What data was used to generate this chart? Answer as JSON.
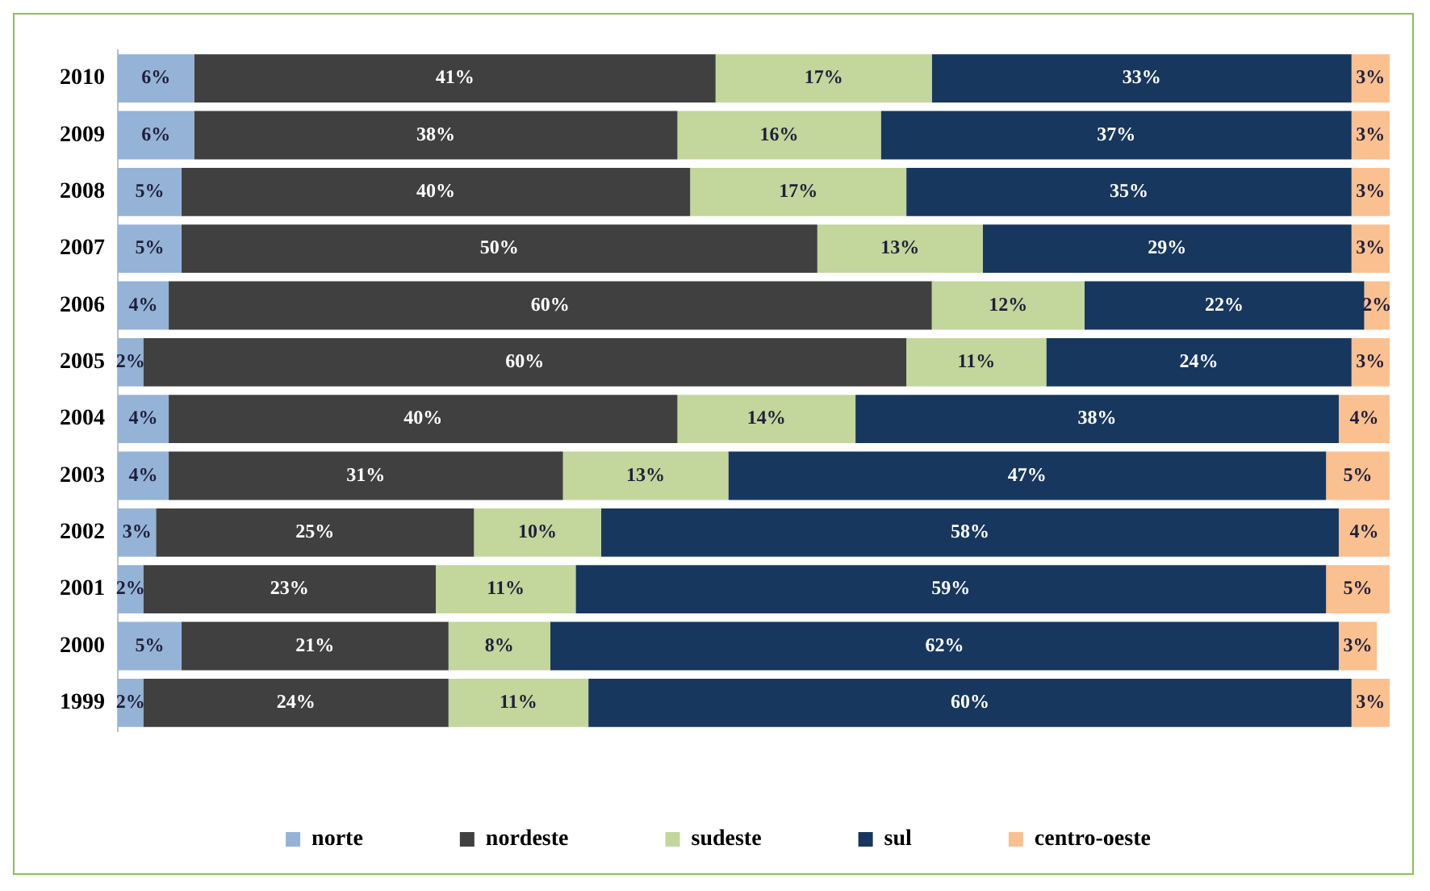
{
  "chart_data": {
    "type": "bar",
    "orientation": "horizontal",
    "stacked": true,
    "legend": "bottom",
    "grid": false,
    "categories": [
      "2010",
      "2009",
      "2008",
      "2007",
      "2006",
      "2005",
      "2004",
      "2003",
      "2002",
      "2001",
      "2000",
      "1999"
    ],
    "series": [
      {
        "name": "norte",
        "color": "#95b3d7",
        "values": [
          6,
          6,
          5,
          5,
          4,
          2,
          4,
          4,
          3,
          2,
          5,
          2
        ],
        "value_labels": [
          "6%",
          "6%",
          "5%",
          "5%",
          "4%",
          "2%",
          "4%",
          "4%",
          "3%",
          "2%",
          "5%",
          "2%"
        ]
      },
      {
        "name": "nordeste",
        "color": "#404040",
        "values": [
          41,
          38,
          40,
          50,
          60,
          60,
          40,
          31,
          25,
          23,
          21,
          24
        ],
        "value_labels": [
          "41%",
          "38%",
          "40%",
          "50%",
          "60%",
          "60%",
          "40%",
          "31%",
          "25%",
          "23%",
          "21%",
          "24%"
        ]
      },
      {
        "name": "sudeste",
        "color": "#c3d69b",
        "values": [
          17,
          16,
          17,
          13,
          12,
          11,
          14,
          13,
          10,
          11,
          8,
          11
        ],
        "value_labels": [
          "17%",
          "16%",
          "17%",
          "13%",
          "12%",
          "11%",
          "14%",
          "13%",
          "10%",
          "11%",
          "8%",
          "11%"
        ]
      },
      {
        "name": "sul",
        "color": "#17375e",
        "values": [
          33,
          37,
          35,
          29,
          22,
          24,
          38,
          47,
          58,
          59,
          62,
          60
        ],
        "value_labels": [
          "33%",
          "37%",
          "35%",
          "29%",
          "22%",
          "24%",
          "38%",
          "47%",
          "58%",
          "59%",
          "62%",
          "60%"
        ]
      },
      {
        "name": "centro-oeste",
        "color": "#fac090",
        "values": [
          3,
          3,
          3,
          3,
          2,
          3,
          4,
          5,
          4,
          5,
          3,
          3
        ],
        "value_labels": [
          "3%",
          "3%",
          "3%",
          "3%",
          "2%",
          "3%",
          "4%",
          "5%",
          "4%",
          "5%",
          "3%",
          "3%"
        ]
      }
    ]
  }
}
